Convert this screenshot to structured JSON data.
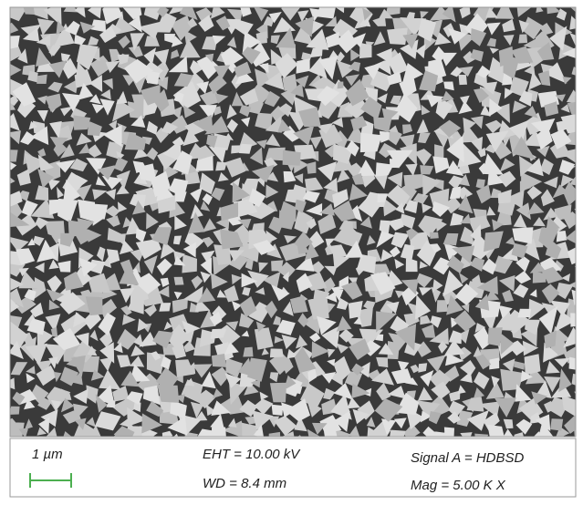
{
  "scale_bar": {
    "label": "1 µm"
  },
  "info": {
    "eht": "EHT = 10.00 kV",
    "wd": "WD = 8.4 mm",
    "signal": "Signal A = HDBSD",
    "mag": "Mag = 5.00 K X"
  }
}
